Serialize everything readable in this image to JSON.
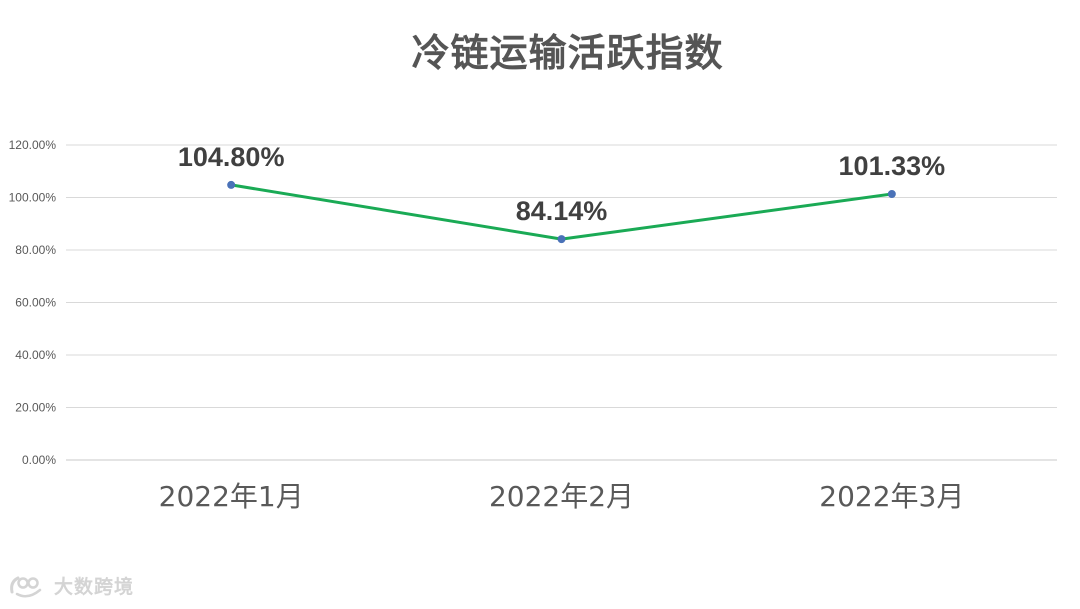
{
  "chart_data": {
    "type": "line",
    "title": "冷链运输活跃指数",
    "categories": [
      "2022年1月",
      "2022年2月",
      "2022年3月"
    ],
    "values": [
      104.8,
      84.14,
      101.33
    ],
    "data_labels": [
      "104.80%",
      "84.14%",
      "101.33%"
    ],
    "ylim": [
      0,
      120
    ],
    "yticks": [
      0,
      20,
      40,
      60,
      80,
      100,
      120
    ],
    "ytick_labels": [
      "0.00%",
      "20.00%",
      "40.00%",
      "60.00%",
      "80.00%",
      "100.00%",
      "120.00%"
    ],
    "xlabel": "",
    "ylabel": "",
    "grid": true,
    "legend": "none",
    "line_color": "#1aaa55",
    "marker_color": "#4a72b8"
  },
  "watermark": {
    "text": "大数跨境"
  }
}
